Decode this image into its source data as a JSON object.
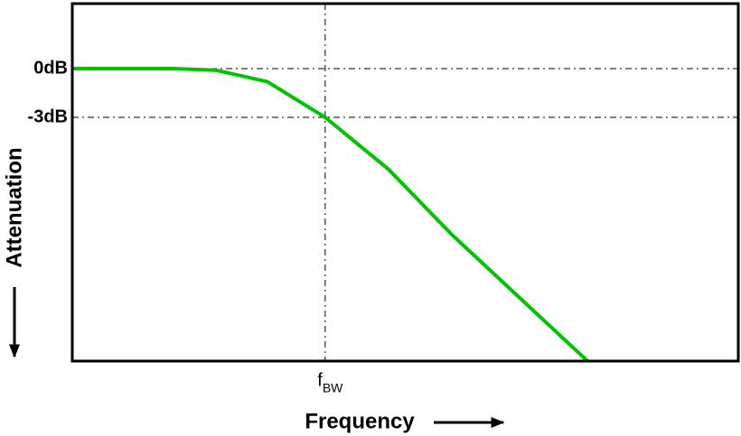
{
  "chart_data": {
    "type": "line",
    "x_label": "Frequency",
    "y_label": "Attenuation",
    "x": [
      0.1,
      0.25,
      0.37,
      0.59,
      1,
      1.78,
      3.16,
      10.9
    ],
    "values": [
      0,
      0,
      -0.1,
      -0.8,
      -3,
      -6.2,
      -10.2,
      -18
    ],
    "color": "#00c400",
    "xscale": "log",
    "xlim": [
      0.1,
      43
    ],
    "xticks": [
      {
        "value": 1,
        "label": "f",
        "label_sub": "BW"
      }
    ],
    "ylim": [
      -18,
      4
    ],
    "yticks": [
      {
        "value": 0,
        "label": "0dB"
      },
      {
        "value": -3,
        "label": "-3dB"
      }
    ],
    "grid": true
  }
}
